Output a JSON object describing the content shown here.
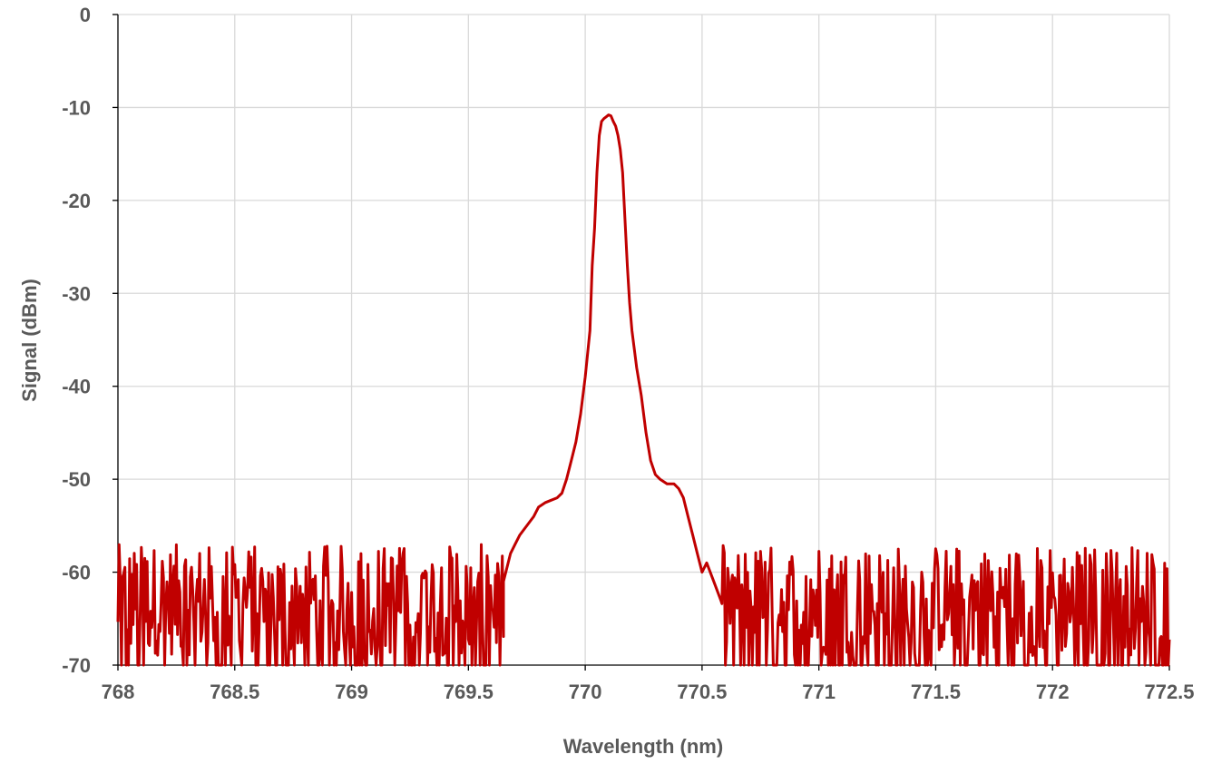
{
  "chart_data": {
    "type": "line",
    "title": "",
    "xlabel": "Wavelength (nm)",
    "ylabel": "Signal (dBm)",
    "xlim": [
      768,
      772.5
    ],
    "ylim": [
      -70,
      0
    ],
    "x_ticks": [
      768,
      768.5,
      769,
      769.5,
      770,
      770.5,
      771,
      771.5,
      772,
      772.5
    ],
    "x_tick_labels": [
      "768",
      "768.5",
      "769",
      "769.5",
      "770",
      "770.5",
      "771",
      "771.5",
      "772",
      "772.5"
    ],
    "y_ticks": [
      0,
      -10,
      -20,
      -30,
      -40,
      -50,
      -60,
      -70
    ],
    "y_tick_labels": [
      "0",
      "-10",
      "-20",
      "-30",
      "-40",
      "-50",
      "-60",
      "-70"
    ],
    "grid": true,
    "legend": "none",
    "series": [
      {
        "color": "#c00000",
        "noise_floor_range": [
          -70,
          -57
        ],
        "x": [
          769.65,
          769.68,
          769.7,
          769.72,
          769.75,
          769.78,
          769.8,
          769.83,
          769.85,
          769.88,
          769.9,
          769.92,
          769.94,
          769.96,
          769.98,
          770.0,
          770.02,
          770.03,
          770.04,
          770.05,
          770.06,
          770.07,
          770.08,
          770.09,
          770.1,
          770.11,
          770.12,
          770.13,
          770.14,
          770.15,
          770.16,
          770.17,
          770.18,
          770.19,
          770.2,
          770.21,
          770.22,
          770.24,
          770.26,
          770.28,
          770.3,
          770.32,
          770.35,
          770.38,
          770.4,
          770.42,
          770.44,
          770.46,
          770.48,
          770.5,
          770.52,
          770.55,
          770.58
        ],
        "y": [
          -61,
          -58,
          -57,
          -56,
          -55,
          -54,
          -53,
          -52.5,
          -52.3,
          -52,
          -51.5,
          -50,
          -48,
          -46,
          -43,
          -39,
          -34,
          -27,
          -23,
          -17,
          -13,
          -11.5,
          -11.2,
          -11,
          -10.8,
          -10.9,
          -11.5,
          -12,
          -13,
          -14.5,
          -17,
          -22,
          -27,
          -31,
          -34,
          -36,
          -38,
          -41,
          -45,
          -48,
          -49.5,
          -50,
          -50.5,
          -50.5,
          -51,
          -52,
          -54,
          -56,
          -58,
          -60,
          -59,
          -61,
          -63
        ]
      }
    ]
  }
}
